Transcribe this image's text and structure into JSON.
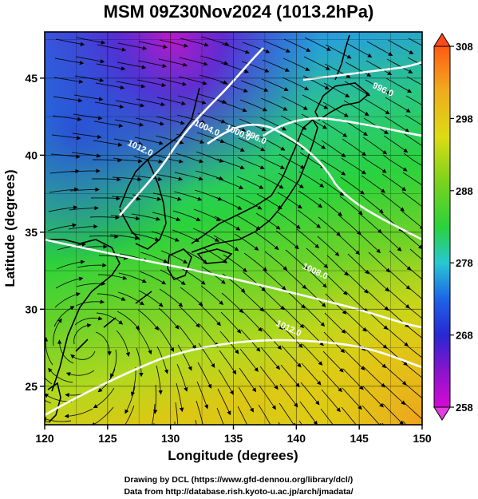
{
  "title": "MSM 09Z30Nov2024 (1013.2hPa)",
  "x_axis": {
    "label": "Longitude (degrees)",
    "range": [
      120,
      150
    ],
    "ticks": [
      "120",
      "125",
      "130",
      "135",
      "140",
      "145",
      "150"
    ],
    "tick_values": [
      120,
      125,
      130,
      135,
      140,
      145,
      150
    ]
  },
  "y_axis": {
    "label": "Latitude  (degrees)",
    "range": [
      22.5,
      48
    ],
    "ticks": [
      "25",
      "30",
      "35",
      "40",
      "45"
    ],
    "tick_values": [
      25,
      30,
      35,
      40,
      45
    ]
  },
  "colorbar": {
    "range": [
      258,
      308
    ],
    "ticks": [
      "258",
      "268",
      "278",
      "288",
      "298",
      "308"
    ],
    "tick_values": [
      258,
      268,
      278,
      288,
      298,
      308
    ],
    "colors": [
      "#d40ad4",
      "#8a14cc",
      "#2828d2",
      "#1e64e6",
      "#28c8d2",
      "#2ad23c",
      "#78d21e",
      "#dcdc14",
      "#f0aa1e",
      "#ff5a14"
    ]
  },
  "isobars": [
    {
      "label": "1012.0",
      "lon": 127.5,
      "lat": 40.3
    },
    {
      "label": "1004.0",
      "lon": 132.8,
      "lat": 41.6
    },
    {
      "label": "1000.0",
      "lon": 135.3,
      "lat": 41.3
    },
    {
      "label": "996.0",
      "lon": 136.7,
      "lat": 41.0
    },
    {
      "label": "996.0",
      "lon": 146.8,
      "lat": 44.1
    },
    {
      "label": "1008.0",
      "lon": 141.4,
      "lat": 32.3
    },
    {
      "label": "1012.0",
      "lon": 139.3,
      "lat": 28.6
    }
  ],
  "credits": {
    "line1": "Drawing by DCL (https://www.gfd-dennou.org/library/dcl/)",
    "line2": "Data from http://database.rish.kyoto-u.ac.jp/arch/jmadata/"
  }
}
